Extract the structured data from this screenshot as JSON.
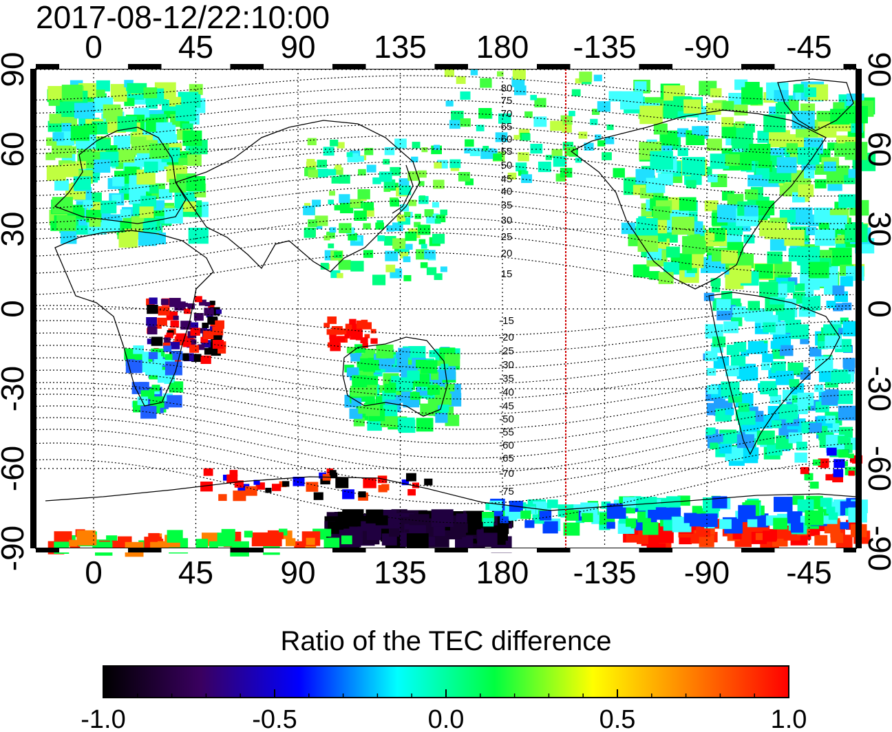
{
  "header": {
    "timestamp": "2017-08-12/22:10:00"
  },
  "map": {
    "top_axis_labels": [
      "0",
      "45",
      "90",
      "135",
      "180",
      "-135",
      "-90",
      "-45"
    ],
    "bottom_axis_labels": [
      "0",
      "45",
      "90",
      "135",
      "180",
      "-135",
      "-90",
      "-45"
    ],
    "left_axis_labels": [
      "90",
      "60",
      "30",
      "0",
      "-30",
      "-60",
      "-90"
    ],
    "right_axis_labels": [
      "90",
      "60",
      "30",
      "0",
      "-30",
      "-60",
      "-90"
    ],
    "magnetic_contour_labels_north": [
      "80",
      "75",
      "70",
      "65",
      "60",
      "55",
      "50",
      "45",
      "40",
      "35",
      "30",
      "25",
      "20",
      "15"
    ],
    "magnetic_contour_labels_south": [
      "-15",
      "-20",
      "-25",
      "-30",
      "-35",
      "-40",
      "-45",
      "-50",
      "-55",
      "-60",
      "-65",
      "-70",
      "-75"
    ],
    "terminator_color": "#d00000"
  },
  "colorbar": {
    "title": "Ratio of the TEC difference",
    "tick_labels": [
      "-1.0",
      "-0.5",
      "0.0",
      "0.5",
      "1.0"
    ],
    "colors": [
      "#000000",
      "#3a0060",
      "#0000ff",
      "#00ffff",
      "#00ff40",
      "#ffff00",
      "#ff8000",
      "#ff0000"
    ]
  }
}
